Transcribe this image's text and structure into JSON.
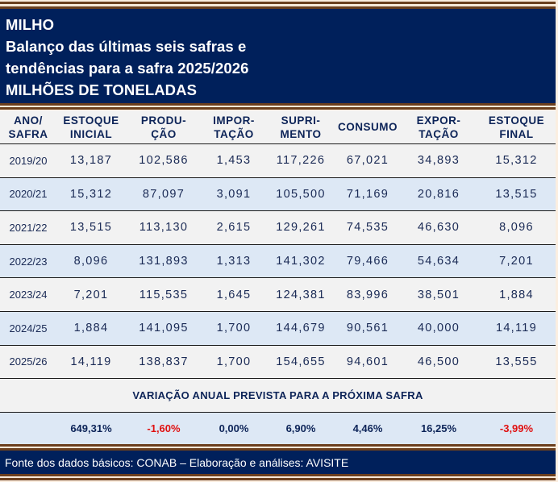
{
  "header": {
    "lines": [
      "MILHO",
      "Balanço das últimas seis safras e",
      "tendências para a safra 2025/2026",
      "MILHÕES DE TONELADAS"
    ]
  },
  "table": {
    "columns": [
      [
        "ANO/",
        "SAFRA"
      ],
      [
        "ESTOQUE",
        "INICIAL"
      ],
      [
        "PRODU-",
        "ÇÃO"
      ],
      [
        "IMPOR-",
        "TAÇÃO"
      ],
      [
        "SUPRI-",
        "MENTO"
      ],
      [
        "CONSUMO",
        ""
      ],
      [
        "EXPOR-",
        "TAÇÃO"
      ],
      [
        "ESTOQUE",
        "FINAL"
      ]
    ],
    "rows": [
      [
        "2019/20",
        "13,187",
        "102,586",
        "1,453",
        "117,226",
        "67,021",
        "34,893",
        "15,312"
      ],
      [
        "2020/21",
        "15,312",
        "87,097",
        "3,091",
        "105,500",
        "71,169",
        "20,816",
        "13,515"
      ],
      [
        "2021/22",
        "13,515",
        "113,130",
        "2,615",
        "129,261",
        "74,535",
        "46,630",
        "8,096"
      ],
      [
        "2022/23",
        "8,096",
        "131,893",
        "1,313",
        "141,302",
        "79,466",
        "54,634",
        "7,201"
      ],
      [
        "2023/24",
        "7,201",
        "115,535",
        "1,645",
        "124,381",
        "83,996",
        "38,501",
        "1,884"
      ],
      [
        "2024/25",
        "1,884",
        "141,095",
        "1,700",
        "144,679",
        "90,561",
        "40,000",
        "14,119"
      ],
      [
        "2025/26",
        "14,119",
        "138,837",
        "1,700",
        "154,655",
        "94,601",
        "46,500",
        "13,555"
      ]
    ]
  },
  "variation": {
    "title": "VARIAÇÃO ANUAL PREVISTA PARA A PRÓXIMA SAFRA",
    "values": [
      "",
      "649,31%",
      "-1,60%",
      "0,00%",
      "6,90%",
      "4,46%",
      "16,25%",
      "-3,99%"
    ],
    "negative_color": "#e01010",
    "positive_color": "#0d2458"
  },
  "footer": {
    "source": "Fonte dos dados básicos: CONAB – Elaboração e análises: AVISITE"
  },
  "colors": {
    "navy": "#00205b",
    "brown": "#6b3f1e",
    "row_odd": "#f2f2f2",
    "row_even": "#dde8f5"
  }
}
